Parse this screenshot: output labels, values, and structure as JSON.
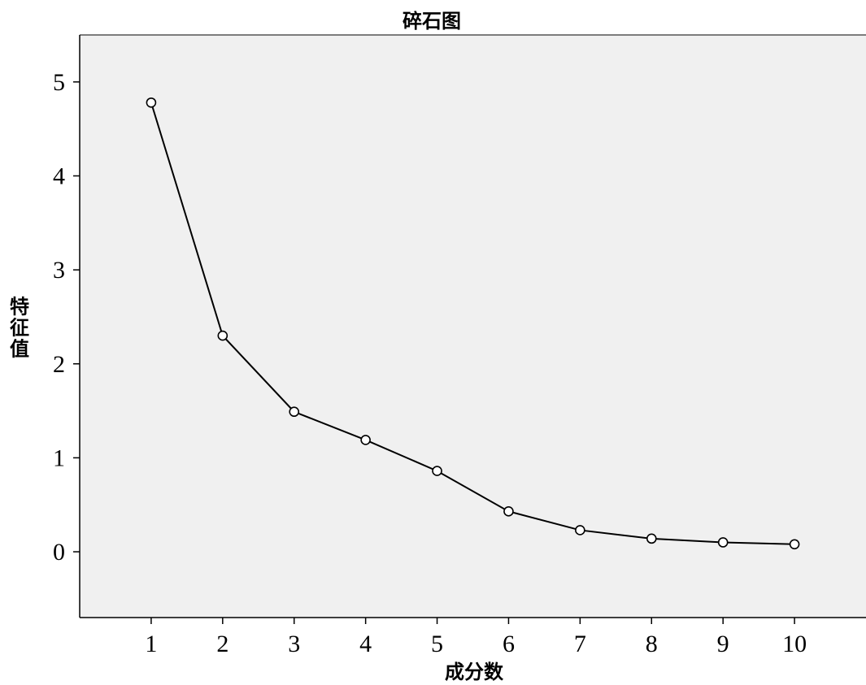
{
  "chart_data": {
    "type": "line",
    "title": "碎石图",
    "xlabel": "成分数",
    "ylabel": "特征值",
    "x": [
      1,
      2,
      3,
      4,
      5,
      6,
      7,
      8,
      9,
      10
    ],
    "series": [
      {
        "values": [
          4.78,
          2.3,
          1.49,
          1.19,
          0.86,
          0.43,
          0.23,
          0.14,
          0.1,
          0.08
        ]
      }
    ],
    "xlim": [
      0,
      11
    ],
    "ylim": [
      -0.7,
      5.5
    ],
    "x_ticks": [
      1,
      2,
      3,
      4,
      5,
      6,
      7,
      8,
      9,
      10
    ],
    "y_ticks": [
      0,
      1,
      2,
      3,
      4,
      5
    ],
    "grid": false,
    "markers": "open-circle",
    "colors": {
      "plot_background": "#f0f0f0",
      "line": "#000000",
      "marker_fill": "#ffffff"
    }
  }
}
